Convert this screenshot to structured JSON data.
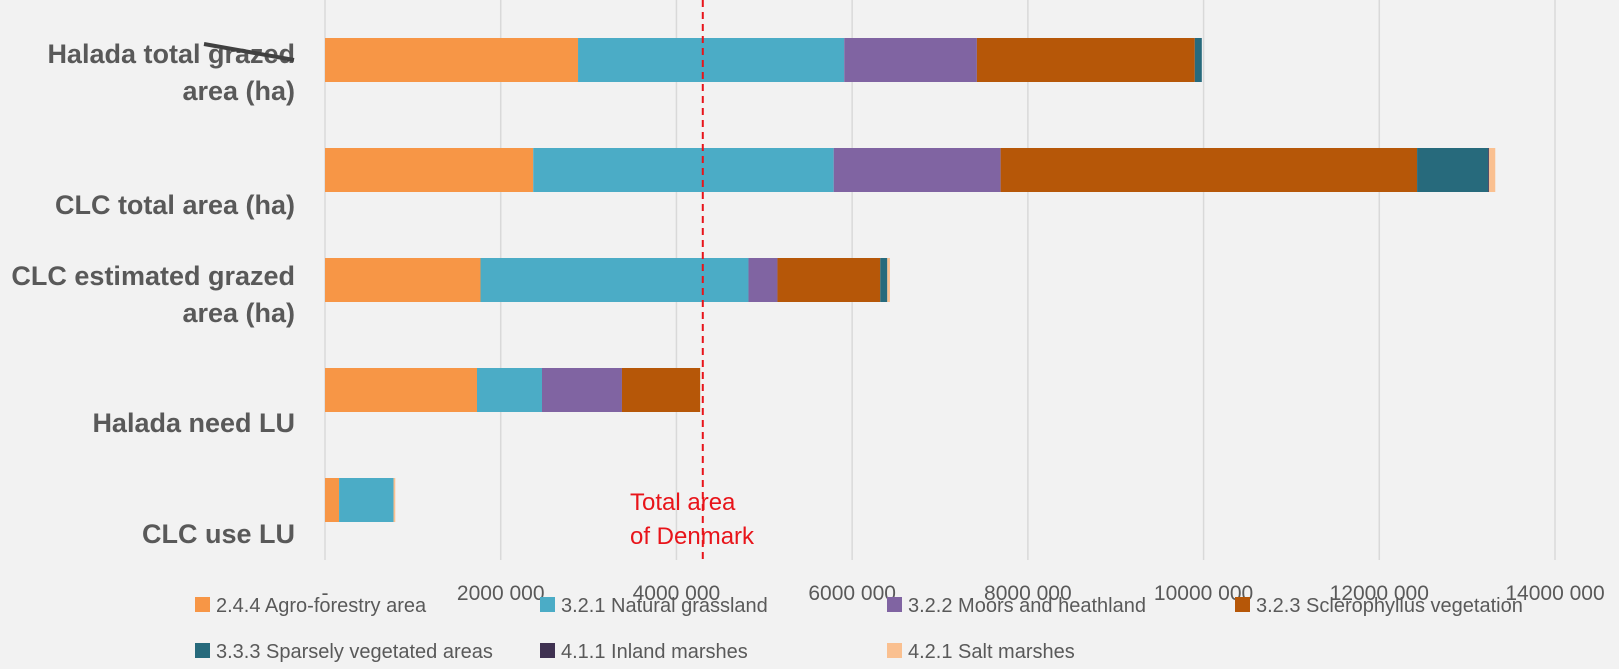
{
  "chart_data": {
    "type": "bar",
    "orientation": "horizontal",
    "stacked": true,
    "title": "",
    "xlabel": "",
    "ylabel": "",
    "xlim": [
      0,
      14000000
    ],
    "x_ticks": [
      0,
      2000000,
      4000000,
      6000000,
      8000000,
      10000000,
      12000000,
      14000000
    ],
    "x_tick_labels": [
      "-",
      "2000 000",
      "4000 000",
      "6000 000",
      "8000 000",
      "10000 000",
      "12000 000",
      "14000 000"
    ],
    "grid": "vertical",
    "legend_position": "bottom",
    "categories": [
      [
        "Halada total grazed",
        "area (ha)"
      ],
      [
        "CLC total area (ha)"
      ],
      [
        "CLC estimated grazed",
        "area (ha)"
      ],
      [
        "Halada need LU"
      ],
      [
        "CLC use LU"
      ]
    ],
    "series": [
      {
        "name": "2.4.4 Agro-forestry area",
        "color": "#f79646",
        "values": [
          2880000,
          2370000,
          1770000,
          1730000,
          160000
        ]
      },
      {
        "name": "3.2.1 Natural grassland",
        "color": "#4bacc6",
        "values": [
          3030000,
          3420000,
          3050000,
          740000,
          620000
        ]
      },
      {
        "name": "3.2.2 Moors and heathland",
        "color": "#8064a2",
        "values": [
          1510000,
          1900000,
          330000,
          910000,
          0
        ]
      },
      {
        "name": "3.2.3  Sclerophyllus vegetation",
        "color": "#b65708",
        "values": [
          2480000,
          4740000,
          1170000,
          890000,
          0
        ]
      },
      {
        "name": "3.3.3 Sparsely vegetated areas",
        "color": "#276a7c",
        "values": [
          80000,
          810000,
          80000,
          0,
          0
        ]
      },
      {
        "name": "4.1.1  Inland marshes",
        "color": "#3f3151",
        "values": [
          0,
          10000,
          0,
          0,
          0
        ]
      },
      {
        "name": "4.2.1 Salt marshes",
        "color": "#fac090",
        "values": [
          0,
          70000,
          30000,
          0,
          20000
        ]
      }
    ],
    "reference_line": {
      "value": 4300000,
      "style": "dashed",
      "color": "#e8141a",
      "label_lines": [
        "Total area",
        "of Denmark"
      ]
    }
  }
}
